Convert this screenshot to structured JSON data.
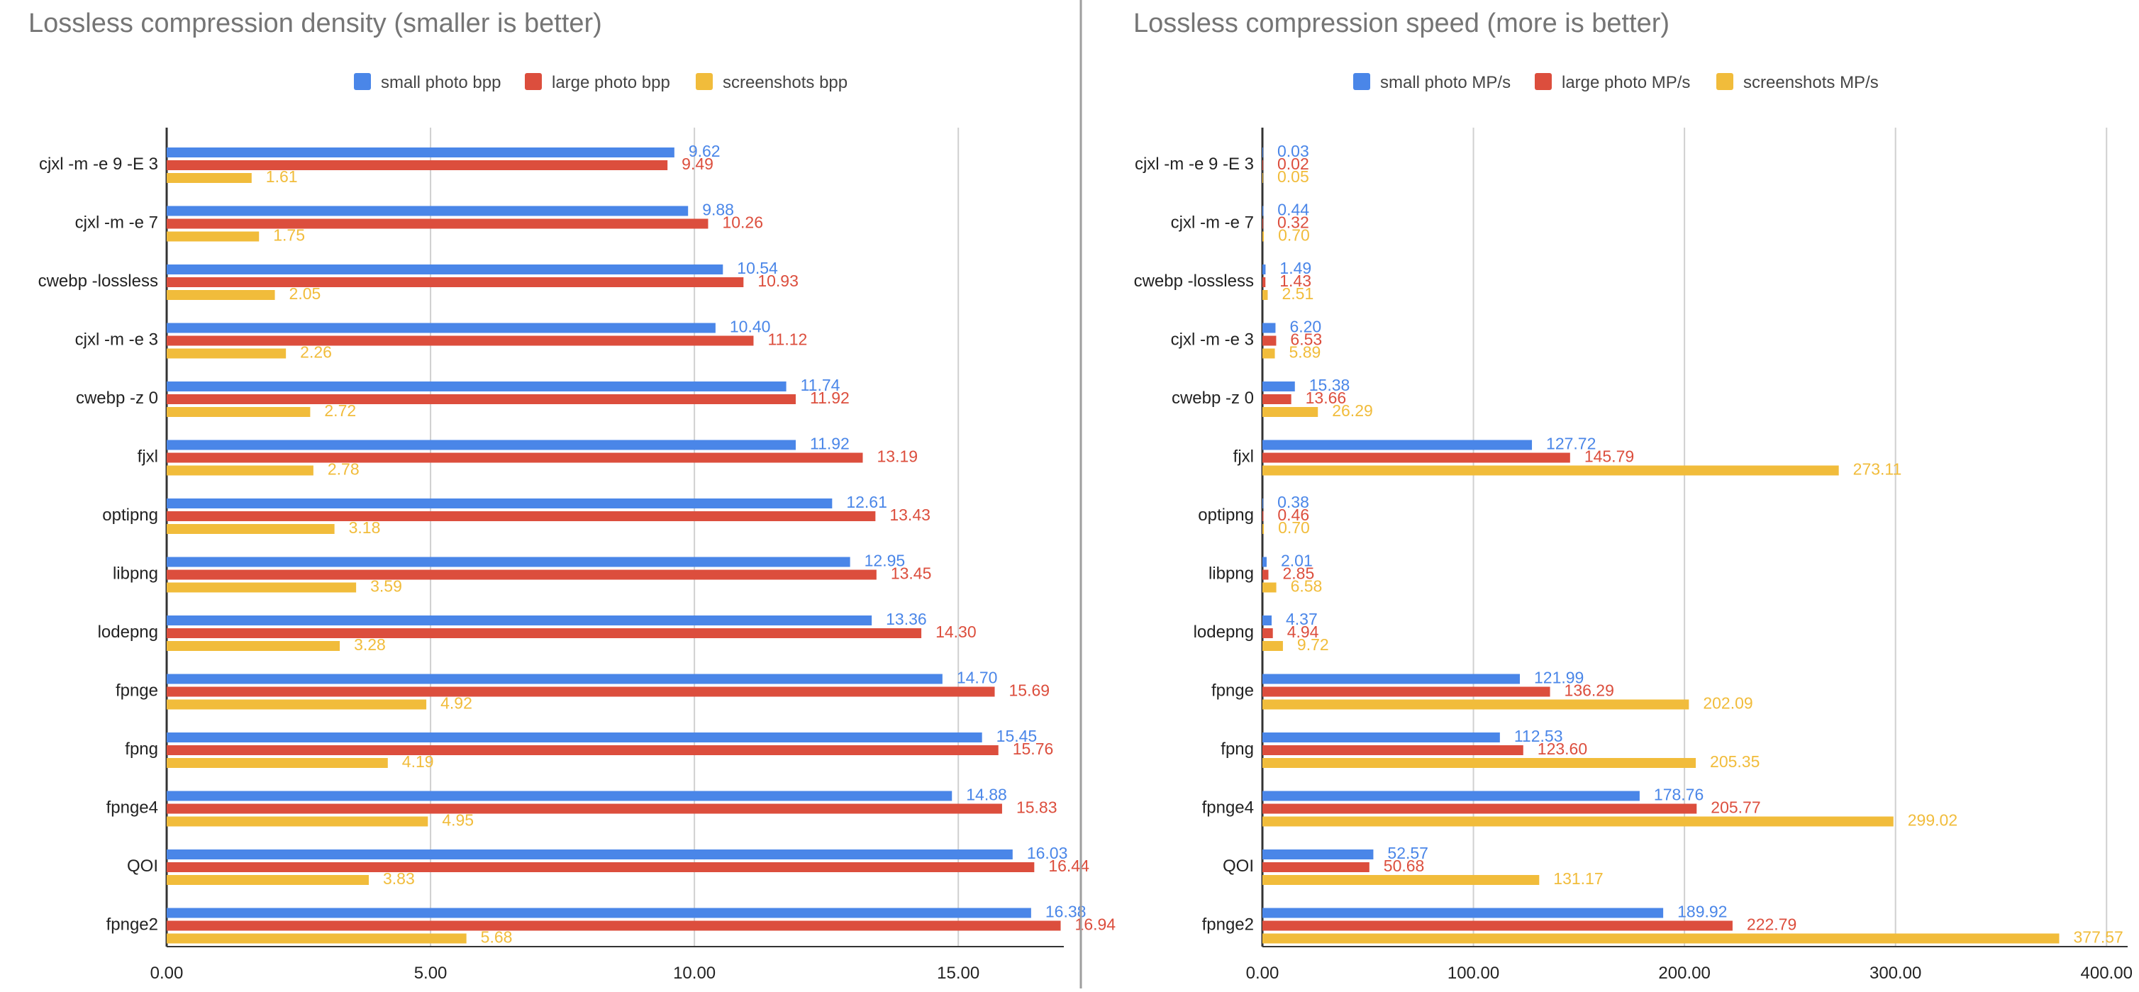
{
  "chart_data": [
    {
      "type": "bar",
      "orientation": "horizontal",
      "title": "Lossless compression density (smaller is better)",
      "xlabel": "",
      "ylabel": "",
      "xlim": [
        0,
        17
      ],
      "x_ticks": [
        "0.00",
        "5.00",
        "10.00",
        "15.00"
      ],
      "x_tick_values": [
        0,
        5,
        10,
        15
      ],
      "grid": true,
      "legend_position": "top",
      "categories": [
        "cjxl -m -e 9 -E 3",
        "cjxl -m -e 7",
        "cwebp -lossless",
        "cjxl -m -e 3",
        "cwebp -z 0",
        "fjxl",
        "optipng",
        "libpng",
        "lodepng",
        "fpnge",
        "fpng",
        "fpnge4",
        "QOI",
        "fpnge2"
      ],
      "series": [
        {
          "name": "small photo bpp",
          "color": "#4a86e8",
          "values": [
            9.62,
            9.88,
            10.54,
            10.4,
            11.74,
            11.92,
            12.61,
            12.95,
            13.36,
            14.7,
            15.45,
            14.88,
            16.03,
            16.38
          ],
          "labels": [
            "9.62",
            "9.88",
            "10.54",
            "10.40",
            "11.74",
            "11.92",
            "12.61",
            "12.95",
            "13.36",
            "14.70",
            "15.45",
            "14.88",
            "16.03",
            "16.38"
          ]
        },
        {
          "name": "large photo bpp",
          "color": "#dc4e3d",
          "values": [
            9.49,
            10.26,
            10.93,
            11.12,
            11.92,
            13.19,
            13.43,
            13.45,
            14.3,
            15.69,
            15.76,
            15.83,
            16.44,
            16.94
          ],
          "labels": [
            "9.49",
            "10.26",
            "10.93",
            "11.12",
            "11.92",
            "13.19",
            "13.43",
            "13.45",
            "14.30",
            "15.69",
            "15.76",
            "15.83",
            "16.44",
            "16.94"
          ]
        },
        {
          "name": "screenshots bpp",
          "color": "#f1bc3b",
          "values": [
            1.61,
            1.75,
            2.05,
            2.26,
            2.72,
            2.78,
            3.18,
            3.59,
            3.28,
            4.92,
            4.19,
            4.95,
            3.83,
            5.68
          ],
          "labels": [
            "1.61",
            "1.75",
            "2.05",
            "2.26",
            "2.72",
            "2.78",
            "3.18",
            "3.59",
            "3.28",
            "4.92",
            "4.19",
            "4.95",
            "3.83",
            "5.68"
          ]
        }
      ]
    },
    {
      "type": "bar",
      "orientation": "horizontal",
      "title": "Lossless compression speed (more is better)",
      "xlabel": "",
      "ylabel": "",
      "xlim": [
        0,
        410
      ],
      "x_ticks": [
        "0.00",
        "100.00",
        "200.00",
        "300.00",
        "400.00"
      ],
      "x_tick_values": [
        0,
        100,
        200,
        300,
        400
      ],
      "grid": true,
      "legend_position": "top",
      "categories": [
        "cjxl -m -e 9 -E 3",
        "cjxl -m -e 7",
        "cwebp -lossless",
        "cjxl -m -e 3",
        "cwebp -z 0",
        "fjxl",
        "optipng",
        "libpng",
        "lodepng",
        "fpnge",
        "fpng",
        "fpnge4",
        "QOI",
        "fpnge2"
      ],
      "series": [
        {
          "name": "small photo MP/s",
          "color": "#4a86e8",
          "values": [
            0.03,
            0.44,
            1.49,
            6.2,
            15.38,
            127.72,
            0.38,
            2.01,
            4.37,
            121.99,
            112.53,
            178.76,
            52.57,
            189.92
          ],
          "labels": [
            "0.03",
            "0.44",
            "1.49",
            "6.20",
            "15.38",
            "127.72",
            "0.38",
            "2.01",
            "4.37",
            "121.99",
            "112.53",
            "178.76",
            "52.57",
            "189.92"
          ]
        },
        {
          "name": "large photo MP/s",
          "color": "#dc4e3d",
          "values": [
            0.02,
            0.32,
            1.43,
            6.53,
            13.66,
            145.79,
            0.46,
            2.85,
            4.94,
            136.29,
            123.6,
            205.77,
            50.68,
            222.79
          ],
          "labels": [
            "0.02",
            "0.32",
            "1.43",
            "6.53",
            "13.66",
            "145.79",
            "0.46",
            "2.85",
            "4.94",
            "136.29",
            "123.60",
            "205.77",
            "50.68",
            "222.79"
          ]
        },
        {
          "name": "screenshots MP/s",
          "color": "#f1bc3b",
          "values": [
            0.05,
            0.7,
            2.51,
            5.89,
            26.29,
            273.11,
            0.7,
            6.58,
            9.72,
            202.09,
            205.35,
            299.02,
            131.17,
            377.57
          ],
          "labels": [
            "0.05",
            "0.70",
            "2.51",
            "5.89",
            "26.29",
            "273.11",
            "0.70",
            "6.58",
            "9.72",
            "202.09",
            "205.35",
            "299.02",
            "131.17",
            "377.57"
          ]
        }
      ]
    }
  ]
}
